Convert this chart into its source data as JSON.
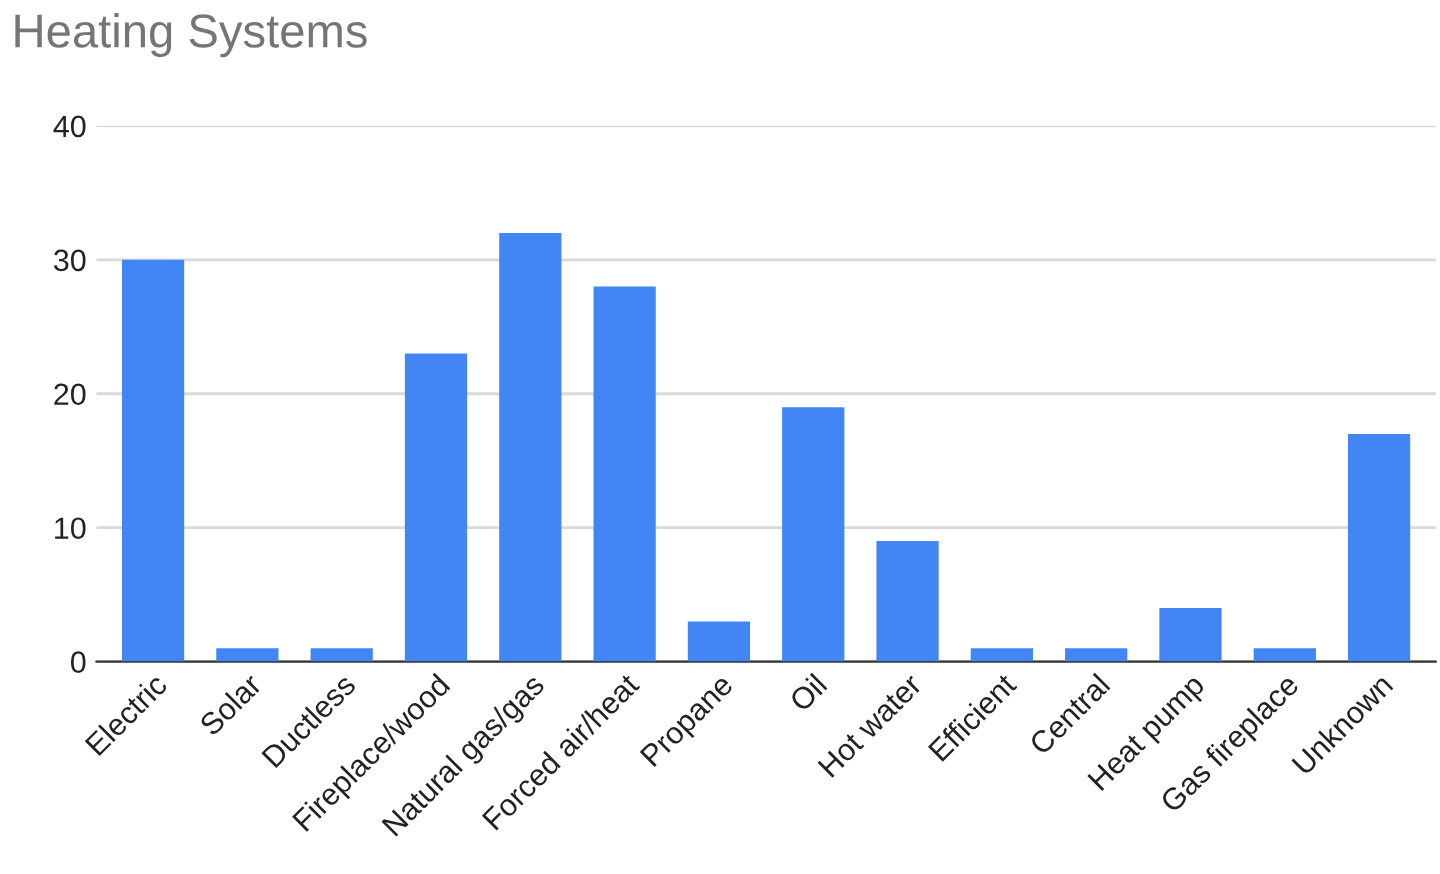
{
  "chart_data": {
    "type": "bar",
    "title": "Heating Systems",
    "categories": [
      "Electric",
      "Solar",
      "Ductless",
      "Fireplace/wood",
      "Natural gas/gas",
      "Forced air/heat",
      "Propane",
      "Oil",
      "Hot water",
      "Efficient",
      "Central",
      "Heat pump",
      "Gas fireplace",
      "Unknown"
    ],
    "values": [
      30,
      1,
      1,
      23,
      32,
      28,
      3,
      19,
      9,
      1,
      1,
      4,
      1,
      17
    ],
    "color": "#4285f4",
    "ylim": [
      0,
      40
    ],
    "yticks": [
      0,
      10,
      20,
      30,
      40
    ],
    "grid": "y"
  }
}
